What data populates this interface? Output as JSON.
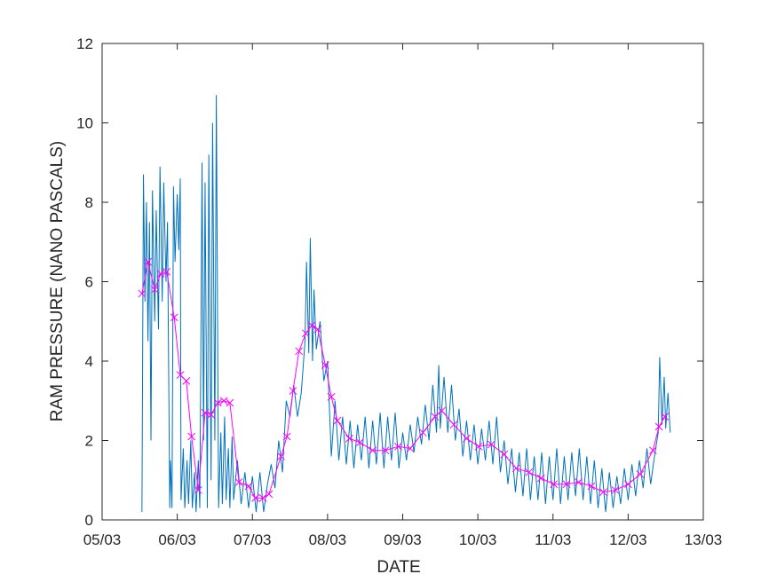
{
  "chart_data": {
    "type": "line",
    "xlabel": "DATE",
    "ylabel": "RAM PRESSURE (NANO PASCALS)",
    "xlim": [
      5,
      13
    ],
    "xticks": [
      {
        "value": 5,
        "label": "05/03"
      },
      {
        "value": 6,
        "label": "06/03"
      },
      {
        "value": 7,
        "label": "07/03"
      },
      {
        "value": 8,
        "label": "08/03"
      },
      {
        "value": 9,
        "label": "09/03"
      },
      {
        "value": 10,
        "label": "10/03"
      },
      {
        "value": 11,
        "label": "11/03"
      },
      {
        "value": 12,
        "label": "12/03"
      },
      {
        "value": 13,
        "label": "13/03"
      }
    ],
    "ylim": [
      0,
      12
    ],
    "yticks": [
      0,
      2,
      4,
      6,
      8,
      10,
      12
    ],
    "grid": false,
    "series": [
      {
        "color": "#0072bd",
        "marker": "none",
        "x": [
          5.53,
          5.55,
          5.57,
          5.59,
          5.61,
          5.63,
          5.65,
          5.67,
          5.7,
          5.72,
          5.75,
          5.77,
          5.8,
          5.82,
          5.85,
          5.87,
          5.9,
          5.91,
          5.93,
          5.95,
          5.97,
          6.0,
          6.02,
          6.04,
          6.05,
          6.08,
          6.1,
          6.13,
          6.15,
          6.18,
          6.2,
          6.23,
          6.25,
          6.28,
          6.3,
          6.33,
          6.35,
          6.37,
          6.4,
          6.42,
          6.45,
          6.47,
          6.5,
          6.52,
          6.55,
          6.58,
          6.6,
          6.63,
          6.65,
          6.68,
          6.7,
          6.73,
          6.75,
          6.8,
          6.85,
          6.9,
          6.95,
          7.0,
          7.05,
          7.1,
          7.15,
          7.2,
          7.25,
          7.3,
          7.35,
          7.4,
          7.45,
          7.5,
          7.55,
          7.6,
          7.65,
          7.7,
          7.72,
          7.75,
          7.77,
          7.8,
          7.82,
          7.85,
          7.9,
          7.95,
          8.0,
          8.05,
          8.1,
          8.15,
          8.2,
          8.25,
          8.3,
          8.35,
          8.4,
          8.45,
          8.5,
          8.55,
          8.6,
          8.65,
          8.7,
          8.75,
          8.8,
          8.85,
          8.9,
          8.95,
          9.0,
          9.05,
          9.1,
          9.15,
          9.2,
          9.25,
          9.3,
          9.35,
          9.4,
          9.45,
          9.48,
          9.5,
          9.55,
          9.6,
          9.65,
          9.7,
          9.75,
          9.8,
          9.85,
          9.9,
          9.95,
          10.0,
          10.05,
          10.1,
          10.15,
          10.2,
          10.25,
          10.3,
          10.35,
          10.4,
          10.45,
          10.5,
          10.55,
          10.6,
          10.65,
          10.7,
          10.75,
          10.8,
          10.85,
          10.9,
          10.95,
          11.0,
          11.05,
          11.1,
          11.15,
          11.2,
          11.25,
          11.3,
          11.35,
          11.4,
          11.45,
          11.5,
          11.55,
          11.6,
          11.65,
          11.7,
          11.75,
          11.8,
          11.85,
          11.9,
          11.95,
          12.0,
          12.05,
          12.1,
          12.15,
          12.2,
          12.25,
          12.3,
          12.35,
          12.4,
          12.42,
          12.45,
          12.48,
          12.5,
          12.53,
          12.56
        ],
        "values": [
          0.2,
          8.7,
          5.5,
          8.0,
          4.5,
          7.5,
          2.0,
          8.3,
          5.0,
          7.8,
          4.8,
          8.9,
          5.5,
          8.5,
          6.0,
          7.5,
          0.3,
          1.5,
          0.3,
          8.4,
          6.5,
          8.2,
          6.8,
          8.6,
          0.5,
          1.8,
          0.3,
          1.5,
          0.4,
          2.0,
          0.3,
          1.2,
          0.2,
          1.5,
          0.3,
          9.0,
          2.0,
          8.5,
          0.3,
          9.2,
          1.0,
          10.0,
          2.0,
          10.7,
          0.3,
          2.2,
          0.4,
          2.6,
          0.5,
          1.8,
          0.3,
          2.1,
          0.5,
          1.5,
          0.4,
          1.2,
          0.3,
          1.1,
          0.2,
          1.2,
          0.2,
          0.9,
          1.4,
          0.8,
          2.0,
          1.2,
          3.0,
          2.6,
          3.4,
          2.6,
          3.2,
          4.5,
          6.5,
          4.2,
          7.1,
          4.0,
          5.8,
          4.3,
          5.0,
          3.5,
          4.0,
          1.6,
          3.0,
          1.5,
          2.6,
          1.4,
          2.5,
          1.3,
          2.4,
          1.5,
          2.6,
          1.3,
          2.5,
          1.4,
          2.7,
          1.3,
          2.6,
          1.5,
          2.7,
          1.3,
          2.2,
          1.5,
          2.4,
          1.7,
          2.6,
          1.9,
          2.9,
          2.0,
          3.4,
          2.2,
          3.9,
          2.3,
          3.6,
          2.2,
          3.4,
          2.0,
          2.8,
          1.6,
          2.5,
          1.5,
          2.4,
          1.4,
          2.3,
          1.5,
          2.5,
          1.4,
          2.6,
          1.2,
          2.0,
          0.9,
          1.8,
          0.7,
          1.7,
          0.6,
          1.8,
          0.5,
          1.6,
          0.5,
          1.7,
          0.4,
          1.6,
          0.5,
          1.8,
          0.4,
          1.6,
          0.5,
          1.7,
          0.6,
          1.8,
          0.5,
          1.6,
          0.4,
          1.5,
          0.3,
          1.3,
          0.2,
          1.2,
          0.3,
          1.1,
          0.4,
          1.3,
          0.5,
          1.4,
          0.6,
          1.5,
          0.8,
          1.8,
          0.9,
          1.6,
          2.2,
          4.1,
          2.4,
          3.6,
          2.3,
          3.2,
          2.2
        ]
      },
      {
        "color": "#ff00ff",
        "marker": "x",
        "x": [
          5.53,
          5.61,
          5.7,
          5.78,
          5.86,
          5.96,
          6.04,
          6.12,
          6.19,
          6.28,
          6.37,
          6.45,
          6.54,
          6.62,
          6.7,
          6.82,
          6.95,
          7.04,
          7.14,
          7.22,
          7.38,
          7.46,
          7.54,
          7.62,
          7.71,
          7.79,
          7.87,
          7.97,
          8.05,
          8.13,
          8.29,
          8.43,
          8.6,
          8.77,
          8.94,
          9.1,
          9.27,
          9.43,
          9.52,
          9.68,
          9.85,
          10.01,
          10.18,
          10.35,
          10.51,
          10.68,
          10.84,
          11.01,
          11.18,
          11.34,
          11.51,
          11.67,
          11.83,
          12.0,
          12.16,
          12.33,
          12.41,
          12.49
        ],
        "values": [
          5.7,
          6.5,
          5.8,
          6.2,
          6.25,
          5.1,
          3.65,
          3.5,
          2.1,
          0.75,
          2.7,
          2.65,
          2.95,
          3.0,
          2.95,
          0.95,
          0.85,
          0.55,
          0.55,
          0.65,
          1.6,
          2.1,
          3.25,
          4.25,
          4.7,
          4.9,
          4.8,
          3.9,
          3.1,
          2.5,
          2.05,
          1.95,
          1.75,
          1.75,
          1.85,
          1.8,
          2.2,
          2.6,
          2.75,
          2.4,
          2.05,
          1.85,
          1.9,
          1.65,
          1.3,
          1.2,
          1.05,
          0.9,
          0.9,
          0.95,
          0.85,
          0.7,
          0.75,
          0.9,
          1.15,
          1.75,
          2.35,
          2.6
        ]
      }
    ]
  }
}
